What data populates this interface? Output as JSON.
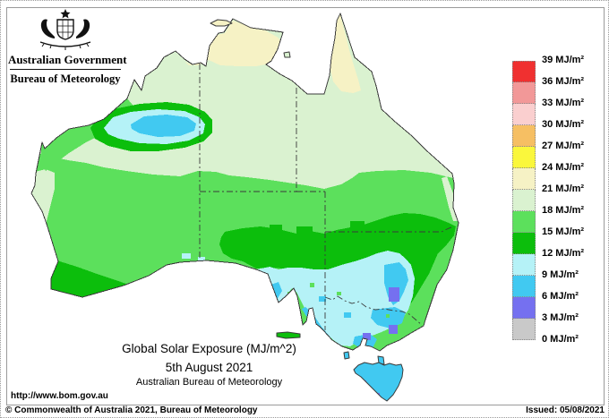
{
  "header": {
    "government": "Australian Government",
    "bureau": "Bureau of Meteorology"
  },
  "title_block": {
    "title": "Global Solar Exposure (MJ/m^2)",
    "date": "5th August 2021",
    "attribution": "Australian Bureau of Meteorology"
  },
  "footer": {
    "url": "http://www.bom.gov.au",
    "copyright": "© Commonwealth of Australia 2021, Bureau of Meteorology",
    "issued": "Issued: 05/08/2021"
  },
  "legend": {
    "unit": "MJ/m²",
    "labels": [
      "39 MJ/m²",
      "36 MJ/m²",
      "33 MJ/m²",
      "30 MJ/m²",
      "27 MJ/m²",
      "24 MJ/m²",
      "21 MJ/m²",
      "18 MJ/m²",
      "15 MJ/m²",
      "12 MJ/m²",
      "9 MJ/m²",
      "6 MJ/m²",
      "3 MJ/m²",
      "0 MJ/m²"
    ],
    "colors": [
      "#F03030",
      "#F29898",
      "#FACFCF",
      "#F6BF63",
      "#FAF73C",
      "#F6F2C5",
      "#DAF2D0",
      "#5CE05C",
      "#0CBE0C",
      "#B5F2F7",
      "#41C9F1",
      "#7570F0",
      "#C9C9C9"
    ]
  },
  "chart_data": {
    "type": "heatmap",
    "subtype": "choropleth-weather-map",
    "title": "Global Solar Exposure (MJ/m^2)",
    "date": "5th August 2021",
    "source": "Australian Bureau of Meteorology",
    "unit": "MJ/m²",
    "scale_boundaries": [
      0,
      3,
      6,
      9,
      12,
      15,
      18,
      21,
      24,
      27,
      30,
      33,
      36,
      39
    ],
    "scale_colors_low_to_high": [
      "#C9C9C9",
      "#7570F0",
      "#41C9F1",
      "#B5F2F7",
      "#0CBE0C",
      "#5CE05C",
      "#DAF2D0",
      "#F6F2C5",
      "#FAF73C",
      "#F6BF63",
      "#FACFCF",
      "#F29898",
      "#F03030"
    ],
    "legend_position": "right",
    "regions": [
      {
        "area": "Top End NT and northern Cape York",
        "value_mj_m2": "21-24"
      },
      {
        "area": "Northern band: Kimberley, NT, NW Queensland, QLD coast",
        "value_mj_m2": "18-21"
      },
      {
        "area": "Central Australia: WA interior through inland QLD/NSW",
        "value_mj_m2": "15-18"
      },
      {
        "area": "Southern band: SW WA, Nullarbor coast, central NSW",
        "value_mj_m2": "12-15"
      },
      {
        "area": "Pilbara cloud patch (NW WA), ringed 12-15",
        "value_mj_m2": "6-12"
      },
      {
        "area": "South-east: Victoria, southern NSW, SE South Australia",
        "value_mj_m2": "9-12"
      },
      {
        "area": "Australian Alps and central Victoria patches",
        "value_mj_m2": "6-9"
      },
      {
        "area": "Snowy Mountains / Melbourne ranges small patches",
        "value_mj_m2": "3-6"
      },
      {
        "area": "Tasmania",
        "value_mj_m2": "6-9 with 3-6 patches"
      }
    ]
  }
}
